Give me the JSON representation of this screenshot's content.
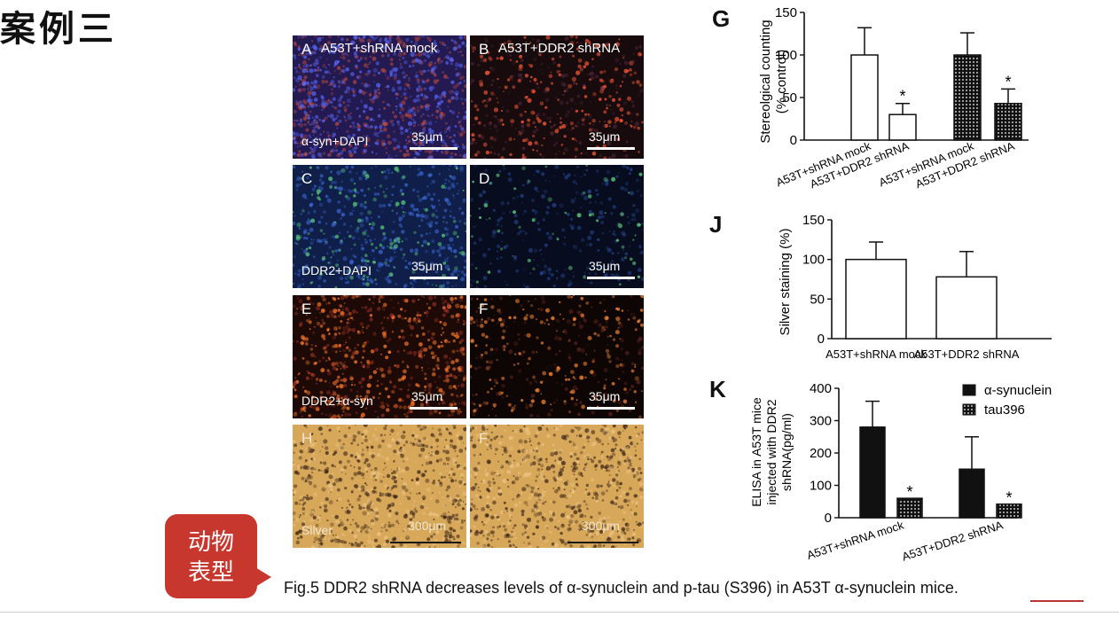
{
  "slide_title": "案例三",
  "badge_text": [
    "动物",
    "表型"
  ],
  "caption": "Fig.5 DDR2 shRNA decreases levels of α-synuclein and p-tau (S396) in A53T α-synuclein mice.",
  "colors": {
    "badge": "#c8372e",
    "bar_dark": "#111111",
    "bar_white": "#ffffff"
  },
  "panels": [
    {
      "letter": "A",
      "title": "A53T+shRNA mock",
      "stain": "α-syn+DAPI",
      "scale": "35μm",
      "type": "red-blue"
    },
    {
      "letter": "B",
      "title": "A53T+DDR2 shRNA",
      "stain": "",
      "scale": "35μm",
      "type": "red-sparse"
    },
    {
      "letter": "C",
      "title": "",
      "stain": "DDR2+DAPI",
      "scale": "35μm",
      "type": "blue-green"
    },
    {
      "letter": "D",
      "title": "",
      "stain": "",
      "scale": "35μm",
      "type": "blue-sparse"
    },
    {
      "letter": "E",
      "title": "",
      "stain": "DDR2+α-syn",
      "scale": "35μm",
      "type": "orange"
    },
    {
      "letter": "F",
      "title": "",
      "stain": "",
      "scale": "35μm",
      "type": "orange-sparse"
    },
    {
      "letter": "H",
      "title": "",
      "stain": "Silver",
      "scale": "300μm",
      "type": "silver"
    },
    {
      "letter": "F",
      "title": "",
      "stain": "",
      "scale": "300μm",
      "type": "silver"
    }
  ],
  "chart_data": [
    {
      "panel": "G",
      "type": "bar",
      "categories": [
        "A53T+shRNA mock",
        "A53T+DDR2 shRNA",
        "A53T+shRNA mock",
        "A53T+DDR2 shRNA"
      ],
      "values": [
        100,
        30,
        100,
        43
      ],
      "errors": [
        32,
        13,
        26,
        17
      ],
      "fills": [
        "white",
        "white",
        "dotted",
        "dotted"
      ],
      "significance": [
        "",
        "*",
        "",
        "*"
      ],
      "ylabel": [
        "Stereolgical counting",
        "(% control)"
      ],
      "ylim": [
        0,
        150
      ],
      "yticks": [
        0,
        50,
        100,
        150
      ]
    },
    {
      "panel": "J",
      "type": "bar",
      "categories": [
        "A53T+shRNA mock",
        "A53T+DDR2 shRNA"
      ],
      "values": [
        100,
        78
      ],
      "errors": [
        22,
        32
      ],
      "fills": [
        "white",
        "white"
      ],
      "ylabel": [
        "Silver staining (%)"
      ],
      "ylim": [
        0,
        150
      ],
      "yticks": [
        0,
        50,
        100,
        150
      ]
    },
    {
      "panel": "K",
      "type": "bar",
      "categories": [
        "A53T+shRNA mock",
        "A53T+DDR2 shRNA"
      ],
      "series": [
        {
          "name": "α-synuclein",
          "values": [
            280,
            150
          ],
          "errors": [
            80,
            100
          ],
          "fill": "black",
          "significance": [
            "",
            ""
          ]
        },
        {
          "name": "tau396",
          "values": [
            60,
            42
          ],
          "errors": [
            0,
            0
          ],
          "fill": "dotted",
          "significance": [
            "*",
            "*"
          ]
        }
      ],
      "ylabel": [
        "ELISA in A53T mice",
        "injected with DDR2",
        "shRNA(pg/ml)"
      ],
      "ylim": [
        0,
        400
      ],
      "yticks": [
        0,
        100,
        200,
        300,
        400
      ],
      "legend": "top-right"
    }
  ]
}
